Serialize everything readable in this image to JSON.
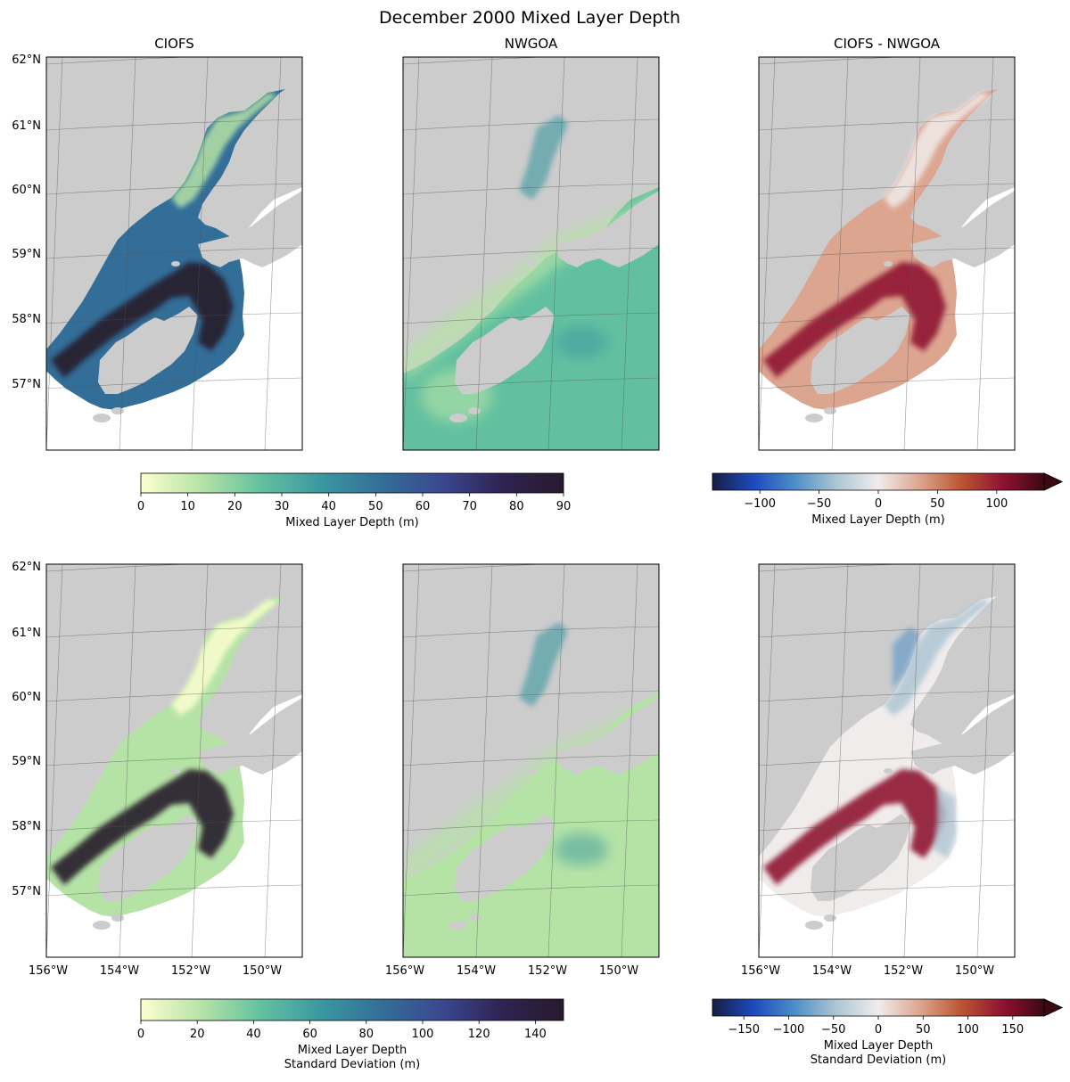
{
  "figure": {
    "title": "December 2000 Mixed Layer Depth"
  },
  "chart_data": [
    {
      "type": "heatmap",
      "panel": "row1-col1",
      "title": "CIOFS",
      "lat_ticks": [
        "62°N",
        "61°N",
        "60°N",
        "59°N",
        "58°N",
        "57°N"
      ],
      "lon_ticks": [],
      "colormap": "deep",
      "variable": "Mixed Layer Depth (m)",
      "range": [
        0,
        90
      ],
      "description_values": "shallow (0–30 m) in upper Cook Inlet, deep (60–90 m) in lower Cook Inlet, Shelikof Strait and outer shelf"
    },
    {
      "type": "heatmap",
      "panel": "row1-col2",
      "title": "NWGOA",
      "lat_ticks": [],
      "lon_ticks": [],
      "colormap": "deep",
      "variable": "Mixed Layer Depth (m)",
      "range": [
        0,
        90
      ],
      "description_values": "mostly 15–40 m throughout domain"
    },
    {
      "type": "heatmap",
      "panel": "row1-col3",
      "title": "CIOFS - NWGOA",
      "lat_ticks": [],
      "lon_ticks": [],
      "colormap": "balance",
      "variable": "Mixed Layer Depth (m)",
      "range": [
        -140,
        140
      ],
      "description_values": "mostly positive 0–120 m, largest in Shelikof Strait"
    },
    {
      "type": "heatmap",
      "panel": "row2-col1",
      "title": "",
      "lat_ticks": [
        "62°N",
        "61°N",
        "60°N",
        "59°N",
        "58°N",
        "57°N"
      ],
      "lon_ticks": [
        "156°W",
        "154°W",
        "152°W",
        "150°W"
      ],
      "colormap": "deep",
      "variable": "Mixed Layer Depth Standard Deviation (m)",
      "range": [
        0,
        150
      ]
    },
    {
      "type": "heatmap",
      "panel": "row2-col2",
      "title": "",
      "lat_ticks": [],
      "lon_ticks": [
        "156°W",
        "154°W",
        "152°W",
        "150°W"
      ],
      "colormap": "deep",
      "variable": "Mixed Layer Depth Standard Deviation (m)",
      "range": [
        0,
        150
      ]
    },
    {
      "type": "heatmap",
      "panel": "row2-col3",
      "title": "",
      "lat_ticks": [],
      "lon_ticks": [
        "156°W",
        "154°W",
        "152°W",
        "150°W"
      ],
      "colormap": "balance",
      "variable": "Mixed Layer Depth Standard Deviation (m)",
      "range": [
        -185,
        185
      ]
    }
  ],
  "colorbars": [
    {
      "label": "Mixed Layer Depth (m)",
      "ticks": [
        "0",
        "10",
        "20",
        "30",
        "40",
        "50",
        "60",
        "70",
        "80",
        "90"
      ],
      "tick_values": [
        0,
        10,
        20,
        30,
        40,
        50,
        60,
        70,
        80,
        90
      ],
      "min": 0,
      "max": 90,
      "extend": "neither",
      "cmap": "deep"
    },
    {
      "label": "Mixed Layer Depth (m)",
      "ticks": [
        "−100",
        "−50",
        "0",
        "50",
        "100"
      ],
      "tick_values": [
        -100,
        -50,
        0,
        50,
        100
      ],
      "min": -140,
      "max": 140,
      "extend": "max",
      "cmap": "balance"
    },
    {
      "label": "Mixed Layer Depth",
      "label2": "Standard Deviation (m)",
      "ticks": [
        "0",
        "20",
        "40",
        "60",
        "80",
        "100",
        "120",
        "140"
      ],
      "tick_values": [
        0,
        20,
        40,
        60,
        80,
        100,
        120,
        140
      ],
      "min": 0,
      "max": 150,
      "extend": "neither",
      "cmap": "deep"
    },
    {
      "label": "Mixed Layer Depth",
      "label2": "Standard Deviation (m)",
      "ticks": [
        "−150",
        "−100",
        "−50",
        "0",
        "50",
        "100",
        "150"
      ],
      "tick_values": [
        -150,
        -100,
        -50,
        0,
        50,
        100,
        150
      ],
      "min": -185,
      "max": 185,
      "extend": "max",
      "cmap": "balance"
    }
  ],
  "colors": {
    "land": "#cccccc",
    "deep": [
      "#fdfed0",
      "#b5e3a6",
      "#62c0a0",
      "#3a97a0",
      "#336e98",
      "#3b478f",
      "#2e2352",
      "#281a2c"
    ],
    "balance": [
      "#181c43",
      "#1d4bbe",
      "#4e8fc8",
      "#aec6d4",
      "#f1ecec",
      "#dca58f",
      "#bb5632",
      "#8f1231",
      "#3c0912"
    ]
  }
}
